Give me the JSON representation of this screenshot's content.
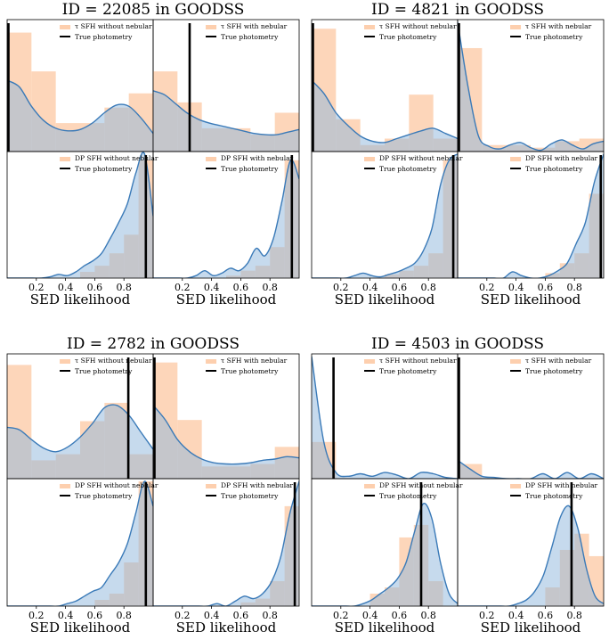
{
  "chart_data": [
    {
      "type": "bar",
      "title": "ID = 22085 in GOODSS",
      "xlabel": "SED likelihood",
      "panels": [
        {
          "label": "τ SFH without nebular",
          "true_label": "True photometry",
          "hist": [
            0.92,
            0.62,
            0.22,
            0.22,
            0.34,
            0.45
          ],
          "kde": [
            0.55,
            0.5,
            0.35,
            0.24,
            0.18,
            0.16,
            0.17,
            0.22,
            0.3,
            0.36,
            0.35,
            0.26,
            0.14
          ],
          "true_value": 0.0
        },
        {
          "label": "τ SFH with nebular",
          "true_label": "True photometry",
          "hist": [
            0.62,
            0.38,
            0.18,
            0.18,
            0.13,
            0.3
          ],
          "kde": [
            0.47,
            0.44,
            0.37,
            0.3,
            0.25,
            0.22,
            0.2,
            0.18,
            0.16,
            0.14,
            0.13,
            0.13,
            0.15,
            0.17
          ],
          "true_value": 0.25
        },
        {
          "label": "DP SFH without nebular",
          "true_label": "True photometry",
          "hist": [
            0.0,
            0.0,
            0.0,
            0.0,
            0.0,
            0.05,
            0.1,
            0.2,
            0.35,
            0.95
          ],
          "kde": [
            0.0,
            0.0,
            0.0,
            0.0,
            0.0,
            0.01,
            0.03,
            0.02,
            0.05,
            0.1,
            0.14,
            0.2,
            0.32,
            0.45,
            0.6,
            0.85,
            1.0,
            0.5
          ],
          "true_value": 0.95
        },
        {
          "label": "DP SFH with nebular",
          "true_label": "True photometry",
          "hist": [
            0.0,
            0.0,
            0.0,
            0.0,
            0.0,
            0.02,
            0.06,
            0.1,
            0.25,
            0.95
          ],
          "kde": [
            0.0,
            0.0,
            0.0,
            0.0,
            0.0,
            0.02,
            0.06,
            0.02,
            0.04,
            0.08,
            0.06,
            0.12,
            0.24,
            0.18,
            0.32,
            0.62,
            0.95,
            0.8
          ],
          "true_value": 0.95
        }
      ]
    },
    {
      "type": "bar",
      "title": "ID = 4821 in GOODSS",
      "xlabel": "SED likelihood",
      "panels": [
        {
          "label": "τ SFH without nebular",
          "true_label": "True photometry",
          "hist": [
            0.95,
            0.25,
            0.05,
            0.1,
            0.44,
            0.1
          ],
          "kde": [
            0.55,
            0.45,
            0.3,
            0.2,
            0.12,
            0.08,
            0.07,
            0.1,
            0.13,
            0.16,
            0.18,
            0.14,
            0.1
          ],
          "true_value": 0.0
        },
        {
          "label": "τ SFH with nebular",
          "true_label": "True photometry",
          "hist": [
            0.8,
            0.05,
            0.05,
            0.03,
            0.08,
            0.1
          ],
          "kde": [
            1.0,
            0.5,
            0.12,
            0.04,
            0.02,
            0.05,
            0.07,
            0.03,
            0.01,
            0.06,
            0.09,
            0.05,
            0.02,
            0.06,
            0.08
          ],
          "true_value": 0.0
        },
        {
          "label": "DP SFH without nebular",
          "true_label": "True photometry",
          "hist": [
            0.0,
            0.0,
            0.0,
            0.0,
            0.0,
            0.03,
            0.06,
            0.1,
            0.2,
            0.95
          ],
          "kde": [
            0.0,
            0.0,
            0.0,
            0.0,
            0.0,
            0.02,
            0.04,
            0.02,
            0.01,
            0.03,
            0.05,
            0.08,
            0.12,
            0.22,
            0.4,
            0.75,
            0.95,
            1.0
          ],
          "true_value": 0.97
        },
        {
          "label": "DP SFH with nebular",
          "true_label": "True photometry",
          "hist": [
            0.0,
            0.0,
            0.0,
            0.0,
            0.0,
            0.0,
            0.04,
            0.12,
            0.2,
            0.68
          ],
          "kde": [
            0.0,
            0.0,
            0.0,
            0.0,
            0.0,
            0.0,
            0.05,
            0.02,
            0.0,
            0.0,
            0.02,
            0.06,
            0.12,
            0.28,
            0.45,
            0.78,
            1.0
          ],
          "true_value": 0.98
        }
      ]
    },
    {
      "type": "bar",
      "title": "ID = 2782 in GOODSS",
      "xlabel": "SED likelihood",
      "panels": [
        {
          "label": "τ SFH without nebular",
          "true_label": "True photometry",
          "hist": [
            0.93,
            0.15,
            0.2,
            0.47,
            0.62,
            0.2
          ],
          "kde": [
            0.42,
            0.4,
            0.32,
            0.25,
            0.22,
            0.26,
            0.34,
            0.45,
            0.58,
            0.6,
            0.52,
            0.38,
            0.24
          ],
          "true_value": 0.83
        },
        {
          "label": "τ SFH with nebular",
          "true_label": "True photometry",
          "hist": [
            0.95,
            0.48,
            0.1,
            0.1,
            0.12,
            0.26
          ],
          "kde": [
            0.6,
            0.48,
            0.32,
            0.22,
            0.16,
            0.13,
            0.12,
            0.12,
            0.13,
            0.15,
            0.16,
            0.18,
            0.17
          ],
          "true_value": 0.0
        },
        {
          "label": "DP SFH without nebular",
          "true_label": "True photometry",
          "hist": [
            0.0,
            0.0,
            0.0,
            0.0,
            0.0,
            0.0,
            0.05,
            0.1,
            0.35,
            1.0
          ],
          "kde": [
            0.0,
            0.0,
            0.0,
            0.0,
            0.0,
            0.0,
            0.0,
            0.02,
            0.04,
            0.08,
            0.12,
            0.15,
            0.25,
            0.35,
            0.5,
            0.75,
            1.0,
            0.8
          ],
          "true_value": 0.95
        },
        {
          "label": "DP SFH with nebular",
          "true_label": "True photometry",
          "hist": [
            0.0,
            0.0,
            0.0,
            0.0,
            0.0,
            0.0,
            0.03,
            0.06,
            0.2,
            0.8
          ],
          "kde": [
            0.0,
            0.0,
            0.0,
            0.0,
            0.0,
            0.0,
            0.0,
            0.02,
            0.0,
            0.04,
            0.08,
            0.06,
            0.1,
            0.2,
            0.4,
            0.75,
            1.0
          ],
          "true_value": 0.97
        }
      ]
    },
    {
      "type": "bar",
      "title": "ID = 4503 in GOODSS",
      "xlabel": "SED likelihood",
      "panels": [
        {
          "label": "τ SFH without nebular",
          "true_label": "True photometry",
          "hist": [
            0.3,
            0.0,
            0.0,
            0.0,
            0.0,
            0.0
          ],
          "kde": [
            1.0,
            0.3,
            0.05,
            0.02,
            0.04,
            0.02,
            0.05,
            0.03,
            0.0,
            0.05,
            0.04,
            0.01,
            0.0
          ],
          "true_value": 0.15
        },
        {
          "label": "τ SFH with nebular",
          "true_label": "True photometry",
          "hist": [
            0.12,
            0.0,
            0.0,
            0.0,
            0.0,
            0.0
          ],
          "kde": [
            0.15,
            0.08,
            0.02,
            0.01,
            0.0,
            0.0,
            0.0,
            0.04,
            0.0,
            0.05,
            0.0,
            0.04,
            0.0
          ],
          "true_value": 0.0
        },
        {
          "label": "DP SFH without nebular",
          "true_label": "True photometry",
          "hist": [
            0.0,
            0.0,
            0.0,
            0.0,
            0.1,
            0.15,
            0.55,
            0.65,
            0.2,
            0.0
          ],
          "kde": [
            0.0,
            0.0,
            0.0,
            0.0,
            0.0,
            0.0,
            0.02,
            0.05,
            0.1,
            0.15,
            0.22,
            0.35,
            0.6,
            0.82,
            0.7,
            0.35,
            0.1,
            0.02
          ],
          "true_value": 0.75
        },
        {
          "label": "DP SFH with nebular",
          "true_label": "True photometry",
          "hist": [
            0.0,
            0.0,
            0.0,
            0.0,
            0.0,
            0.0,
            0.15,
            0.45,
            0.58,
            0.4
          ],
          "kde": [
            0.0,
            0.0,
            0.0,
            0.0,
            0.0,
            0.0,
            0.0,
            0.02,
            0.05,
            0.12,
            0.25,
            0.48,
            0.72,
            0.8,
            0.62,
            0.3,
            0.08,
            0.02
          ],
          "true_value": 0.78
        }
      ]
    }
  ],
  "xticks": [
    "0.2",
    "0.4",
    "0.6",
    "0.8"
  ],
  "xlim": [
    0,
    1
  ],
  "colors": {
    "hist": "#fdcfae",
    "kde_line": "#3a7ab8",
    "kde_fill": "#8db6dc",
    "overlap": "#c8bfaf",
    "true_line": "#000000",
    "frame": "#000000"
  }
}
